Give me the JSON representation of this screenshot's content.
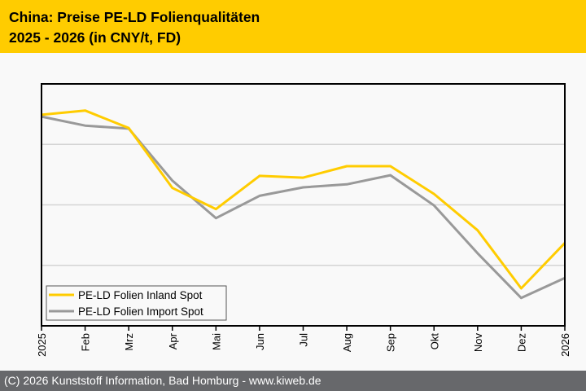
{
  "header": {
    "title_line1": "China: Preise PE-LD Folienqualitäten",
    "title_line2": "2025 - 2026 (in CNY/t, FD)"
  },
  "footer": {
    "text": "(C) 2026 Kunststoff Information, Bad Homburg - www.kiweb.de"
  },
  "colors": {
    "header_bg": "#ffcc00",
    "footer_bg": "#67686b",
    "inland": "#ffcc00",
    "import": "#999999"
  },
  "chart_data": {
    "type": "line",
    "title": "China: Preise PE-LD Folienqualitäten 2025 - 2026 (in CNY/t, FD)",
    "xlabel": "",
    "ylabel": "",
    "y_units": "relative (no y tick labels shown)",
    "ylim": [
      0,
      4
    ],
    "y_gridlines": [
      1,
      2,
      3
    ],
    "grid": true,
    "legend_position": "bottom-left",
    "categories": [
      "2025",
      "Feb",
      "Mrz",
      "Apr",
      "Mai",
      "Jun",
      "Jul",
      "Aug",
      "Sep",
      "Okt",
      "Nov",
      "Dez",
      "2026"
    ],
    "series": [
      {
        "name": "PE-LD Folien Inland Spot",
        "color": "#ffcc00",
        "values": [
          3.49,
          3.56,
          3.27,
          2.28,
          1.93,
          2.48,
          2.45,
          2.64,
          2.64,
          2.18,
          1.58,
          0.62,
          1.37
        ]
      },
      {
        "name": "PE-LD Folien Import Spot",
        "color": "#999999",
        "values": [
          3.46,
          3.31,
          3.26,
          2.4,
          1.78,
          2.15,
          2.29,
          2.34,
          2.49,
          1.99,
          1.2,
          0.46,
          0.79
        ]
      }
    ]
  }
}
